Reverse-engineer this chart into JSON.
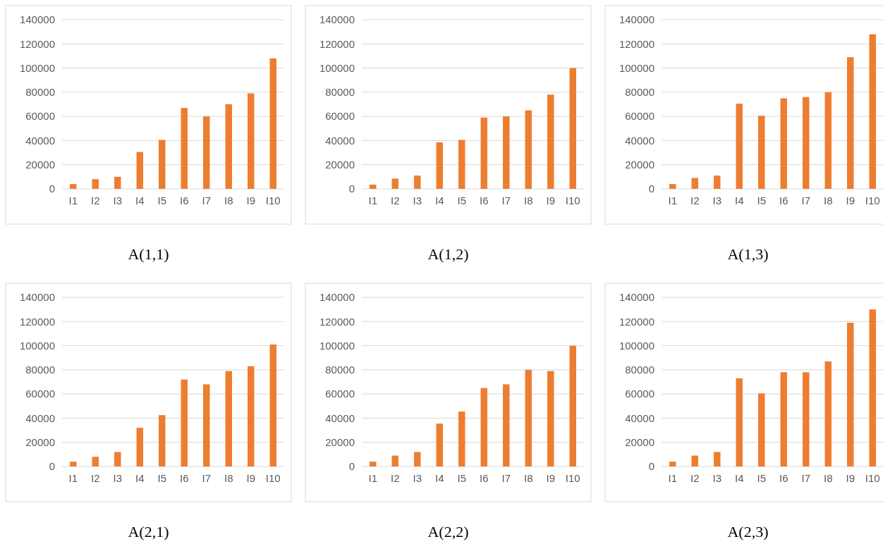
{
  "chart_data": [
    {
      "type": "bar",
      "title": "A(1,1)",
      "categories": [
        "I1",
        "I2",
        "I3",
        "I4",
        "I5",
        "I6",
        "I7",
        "I8",
        "I9",
        "I10"
      ],
      "values": [
        4000,
        8000,
        10000,
        30500,
        40500,
        67000,
        60000,
        70000,
        79000,
        108000
      ],
      "color": "#ed7d31",
      "ylim": [
        0,
        140000
      ],
      "yticks": [
        0,
        20000,
        40000,
        60000,
        80000,
        100000,
        120000,
        140000
      ],
      "grid": "y"
    },
    {
      "type": "bar",
      "title": "A(1,2)",
      "categories": [
        "I1",
        "I2",
        "I3",
        "I4",
        "I5",
        "I6",
        "I7",
        "I8",
        "I9",
        "I10"
      ],
      "values": [
        3500,
        8500,
        11000,
        38500,
        40500,
        59000,
        60000,
        65000,
        78000,
        100000
      ],
      "color": "#ed7d31",
      "ylim": [
        0,
        140000
      ],
      "yticks": [
        0,
        20000,
        40000,
        60000,
        80000,
        100000,
        120000,
        140000
      ],
      "grid": "y"
    },
    {
      "type": "bar",
      "title": "A(1,3)",
      "categories": [
        "I1",
        "I2",
        "I3",
        "I4",
        "I5",
        "I6",
        "I7",
        "I8",
        "I9",
        "I10"
      ],
      "values": [
        4000,
        9000,
        11000,
        70500,
        60500,
        75000,
        76000,
        80000,
        109000,
        128000
      ],
      "color": "#ed7d31",
      "ylim": [
        0,
        140000
      ],
      "yticks": [
        0,
        20000,
        40000,
        60000,
        80000,
        100000,
        120000,
        140000
      ],
      "grid": "y"
    },
    {
      "type": "bar",
      "title": "A(2,1)",
      "categories": [
        "I1",
        "I2",
        "I3",
        "I4",
        "I5",
        "I6",
        "I7",
        "I8",
        "I9",
        "I10"
      ],
      "values": [
        4000,
        8000,
        12000,
        32000,
        42500,
        72000,
        68000,
        79000,
        83000,
        101000
      ],
      "color": "#ed7d31",
      "ylim": [
        0,
        140000
      ],
      "yticks": [
        0,
        20000,
        40000,
        60000,
        80000,
        100000,
        120000,
        140000
      ],
      "grid": "y"
    },
    {
      "type": "bar",
      "title": "A(2,2)",
      "categories": [
        "I1",
        "I2",
        "I3",
        "I4",
        "I5",
        "I6",
        "I7",
        "I8",
        "I9",
        "I10"
      ],
      "values": [
        4000,
        9000,
        12000,
        35500,
        45500,
        65000,
        68000,
        80000,
        79000,
        100000
      ],
      "color": "#ed7d31",
      "ylim": [
        0,
        140000
      ],
      "yticks": [
        0,
        20000,
        40000,
        60000,
        80000,
        100000,
        120000,
        140000
      ],
      "grid": "y"
    },
    {
      "type": "bar",
      "title": "A(2,3)",
      "categories": [
        "I1",
        "I2",
        "I3",
        "I4",
        "I5",
        "I6",
        "I7",
        "I8",
        "I9",
        "I10"
      ],
      "values": [
        4000,
        9000,
        12000,
        73000,
        60500,
        78000,
        78000,
        87000,
        119000,
        130000
      ],
      "color": "#ed7d31",
      "ylim": [
        0,
        140000
      ],
      "yticks": [
        0,
        20000,
        40000,
        60000,
        80000,
        100000,
        120000,
        140000
      ],
      "grid": "y"
    }
  ]
}
